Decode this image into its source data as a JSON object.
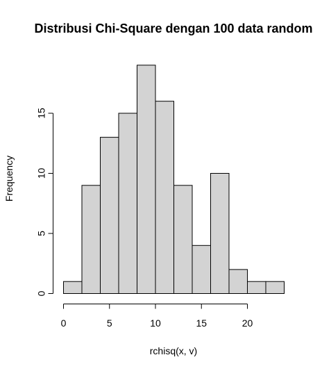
{
  "chart_data": {
    "type": "bar",
    "title": "Distribusi Chi-Square dengan 100 data random",
    "xlabel": "rchisq(x, v)",
    "ylabel": "Frequency",
    "bin_width": 2,
    "bins": [
      {
        "start": 0,
        "end": 2,
        "count": 1
      },
      {
        "start": 2,
        "end": 4,
        "count": 9
      },
      {
        "start": 4,
        "end": 6,
        "count": 13
      },
      {
        "start": 6,
        "end": 8,
        "count": 15
      },
      {
        "start": 8,
        "end": 10,
        "count": 19
      },
      {
        "start": 10,
        "end": 12,
        "count": 16
      },
      {
        "start": 12,
        "end": 14,
        "count": 9
      },
      {
        "start": 14,
        "end": 16,
        "count": 4
      },
      {
        "start": 16,
        "end": 18,
        "count": 10
      },
      {
        "start": 18,
        "end": 20,
        "count": 2
      },
      {
        "start": 20,
        "end": 22,
        "count": 1
      },
      {
        "start": 22,
        "end": 24,
        "count": 1
      }
    ],
    "x_ticks": [
      0,
      5,
      10,
      15,
      20
    ],
    "y_ticks": [
      0,
      5,
      10,
      15
    ],
    "xlim": [
      0,
      24
    ],
    "ylim": [
      0,
      19
    ],
    "bar_color": "#d3d3d3",
    "grid": false
  }
}
